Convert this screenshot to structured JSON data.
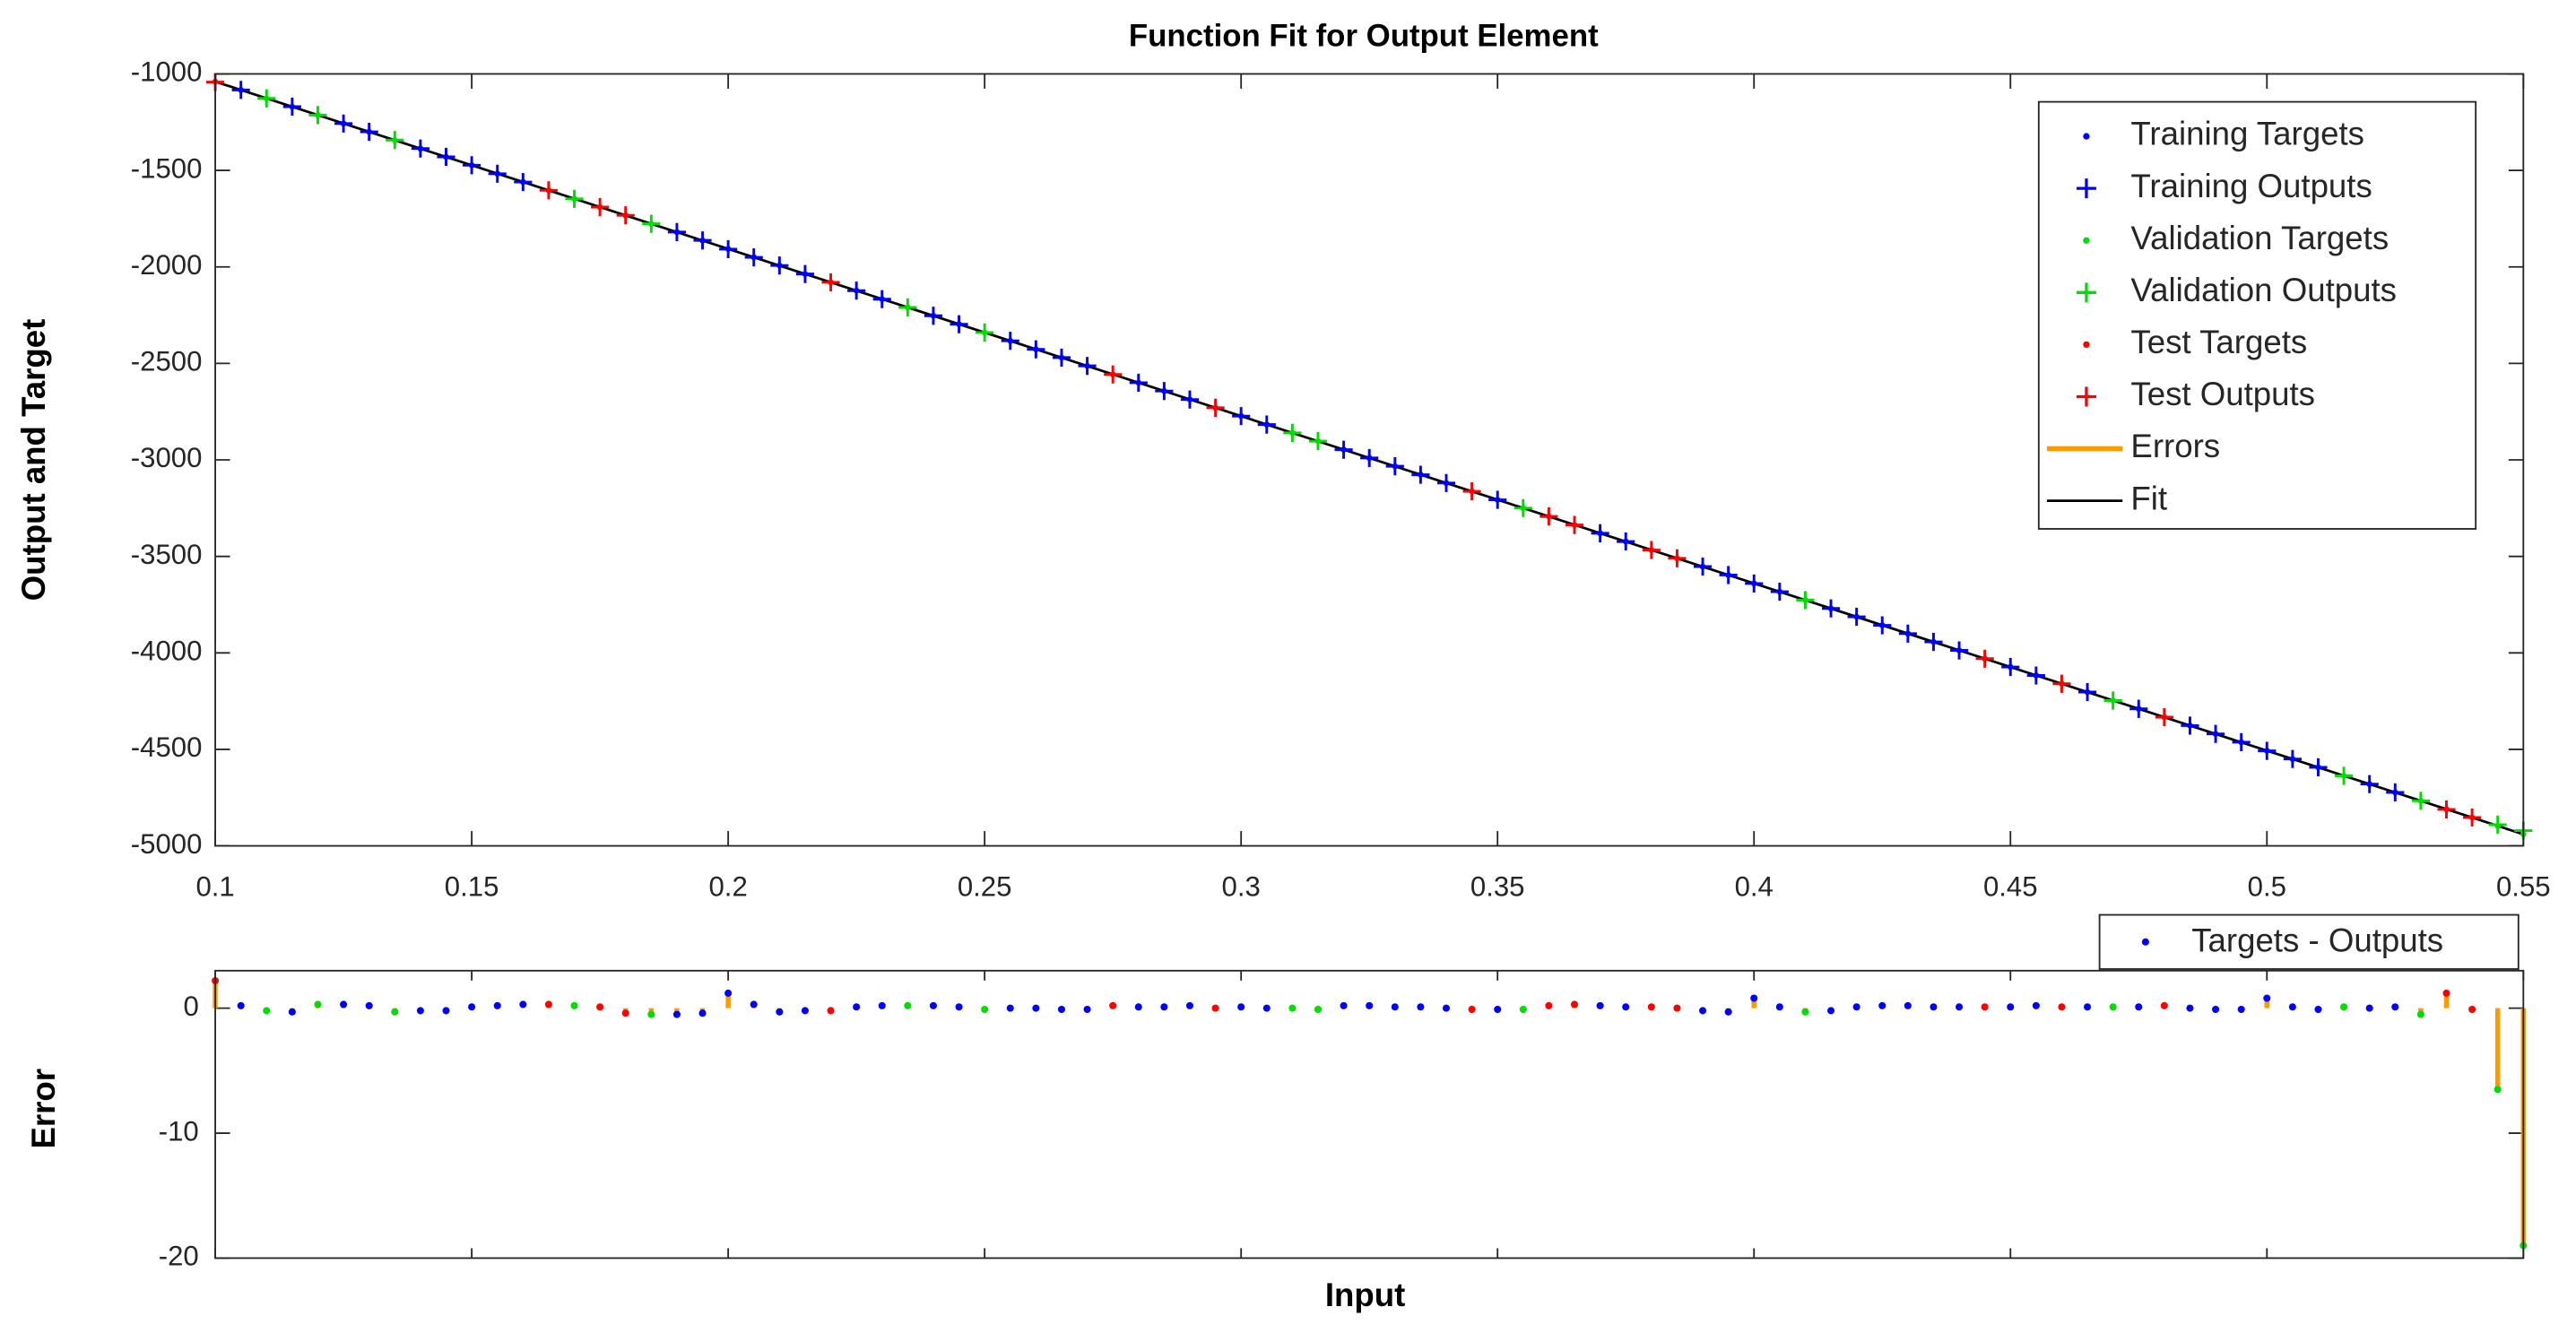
{
  "chart_data": [
    {
      "type": "fit",
      "title": "Function Fit for Output Element",
      "ylabel": "Output and Target",
      "xlim": [
        0.1,
        0.55
      ],
      "ylim": [
        -5000,
        -1000
      ],
      "xticks": [
        0.1,
        0.15,
        0.2,
        0.25,
        0.3,
        0.35,
        0.4,
        0.45,
        0.5,
        0.55
      ],
      "yticks": [
        -5000,
        -4500,
        -4000,
        -3500,
        -3000,
        -2500,
        -2000,
        -1500,
        -1000
      ],
      "legend": "upper right",
      "sets": [
        {
          "color": "#0000ff",
          "targets": {
            "name": "Training Targets",
            "values": [
              -1083,
              -1170,
              -1257,
              -1300,
              -1387,
              -1430,
              -1473,
              -1517,
              -1560,
              -1820,
              -1863,
              -1907,
              -1950,
              -1993,
              -2037,
              -2123,
              -2167,
              -2253,
              -2297,
              -2383,
              -2427,
              -2470,
              -2513,
              -2600,
              -2643,
              -2687,
              -2773,
              -2817,
              -2947,
              -2990,
              -3033,
              -3077,
              -3120,
              -3207,
              -3380,
              -3423,
              -3553,
              -3597,
              -3640,
              -3683,
              -3770,
              -3813,
              -3857,
              -3900,
              -3943,
              -3987,
              -4073,
              -4117,
              -4203,
              -4290,
              -4377,
              -4420,
              -4463,
              -4507,
              -4550,
              -4593,
              -4680,
              -4723
            ]
          },
          "outputs": {
            "name": "Training Outputs",
            "values": [
              -1083.2,
              -1169.7,
              -1257.3,
              -1300.2,
              -1386.8,
              -1429.8,
              -1473.1,
              -1517.2,
              -1560.3,
              -1819.5,
              -1862.6,
              -1908.2,
              -1950.3,
              -1992.7,
              -2036.8,
              -2123.1,
              -2167.2,
              -2253.2,
              -2297.1,
              -2383,
              -2427,
              -2469.9,
              -2512.9,
              -2600.1,
              -2643.1,
              -2687.2,
              -2773.1,
              -2817,
              -2947.2,
              -2990.2,
              -3033.1,
              -3077.1,
              -3120,
              -3206.9,
              -3380.2,
              -3423.1,
              -3552.8,
              -3596.7,
              -3640.8,
              -3683.1,
              -3769.8,
              -3813.1,
              -3857.2,
              -3900.2,
              -3943.1,
              -3987.1,
              -4073.1,
              -4117.2,
              -4203.1,
              -4290.1,
              -4377,
              -4419.9,
              -4462.9,
              -4507.8,
              -4550.1,
              -4592.9,
              -4680,
              -4723.1
            ]
          },
          "x": [
            0.105,
            0.115,
            0.125,
            0.13,
            0.14,
            0.145,
            0.15,
            0.155,
            0.16,
            0.19,
            0.195,
            0.2,
            0.205,
            0.21,
            0.215,
            0.225,
            0.23,
            0.24,
            0.245,
            0.255,
            0.26,
            0.265,
            0.27,
            0.28,
            0.285,
            0.29,
            0.3,
            0.305,
            0.32,
            0.325,
            0.33,
            0.335,
            0.34,
            0.35,
            0.37,
            0.375,
            0.39,
            0.395,
            0.4,
            0.405,
            0.415,
            0.42,
            0.425,
            0.43,
            0.435,
            0.44,
            0.45,
            0.455,
            0.465,
            0.475,
            0.485,
            0.49,
            0.495,
            0.5,
            0.505,
            0.51,
            0.52,
            0.525
          ]
        },
        {
          "color": "#00dd00",
          "targets": {
            "name": "Validation Targets",
            "values": [
              -1127,
              -1213,
              -1343,
              -1647,
              -1777,
              -2210,
              -2340,
              -2860,
              -2903,
              -3250,
              -3727,
              -4247,
              -4637,
              -4767,
              -4897,
              -4940
            ]
          },
          "outputs": {
            "name": "Validation Outputs",
            "values": [
              -1126.8,
              -1213.3,
              -1342.7,
              -1647.2,
              -1776.5,
              -2210.2,
              -2339.9,
              -2860,
              -2902.9,
              -3249.9,
              -3726.7,
              -4247.1,
              -4637.1,
              -4766.5,
              -4890.5,
              -4921
            ]
          },
          "x": [
            0.11,
            0.12,
            0.135,
            0.17,
            0.185,
            0.235,
            0.25,
            0.31,
            0.315,
            0.355,
            0.41,
            0.47,
            0.515,
            0.53,
            0.545,
            0.55
          ]
        },
        {
          "color": "#ff0000",
          "targets": {
            "name": "Test Targets",
            "values": [
              -1040,
              -1603,
              -1690,
              -1733,
              -2080,
              -2557,
              -2730,
              -3163,
              -3293,
              -3337,
              -3467,
              -3510,
              -4030,
              -4160,
              -4333,
              -4810,
              -4853
            ]
          },
          "outputs": {
            "name": "Test Outputs",
            "values": [
              -1042.2,
              -1603.3,
              -1690.1,
              -1732.6,
              -2079.8,
              -2557.2,
              -2730,
              -3162.9,
              -3293.2,
              -3337.3,
              -3467.1,
              -3510,
              -4030.1,
              -4160.1,
              -4333.2,
              -4811.2,
              -4852.9
            ]
          },
          "x": [
            0.1,
            0.165,
            0.175,
            0.18,
            0.22,
            0.275,
            0.295,
            0.345,
            0.36,
            0.365,
            0.38,
            0.385,
            0.445,
            0.46,
            0.48,
            0.535,
            0.54
          ]
        }
      ],
      "errors": {
        "name": "Errors",
        "color": "#ff9900"
      },
      "fit": {
        "name": "Fit",
        "color": "#000000",
        "x": [
          0.1,
          0.55
        ],
        "values": [
          -1040,
          -4940
        ]
      }
    },
    {
      "type": "error",
      "ylabel": "Error",
      "xlabel": "Input",
      "legend": "Targets - Outputs",
      "ylim": [
        -20,
        3
      ],
      "yticks": [
        -20,
        -10,
        0
      ],
      "stem_color": "#ff9900",
      "series": [
        {
          "color": "#0000ff",
          "values": [
            0.2,
            -0.3,
            0.3,
            0.2,
            -0.2,
            -0.2,
            0.1,
            0.2,
            0.3,
            -0.5,
            -0.4,
            1.2,
            0.3,
            -0.3,
            -0.2,
            0.1,
            0.2,
            0.2,
            0.1,
            0,
            0,
            -0.1,
            -0.1,
            0.1,
            0.1,
            0.2,
            0.1,
            0,
            0.2,
            0.2,
            0.1,
            0.1,
            0,
            -0.1,
            0.2,
            0.1,
            -0.2,
            -0.3,
            0.8,
            0.1,
            -0.2,
            0.1,
            0.2,
            0.2,
            0.1,
            0.1,
            0.1,
            0.2,
            0.1,
            0.1,
            0,
            -0.1,
            -0.1,
            0.8,
            0.1,
            -0.1,
            0,
            0.1
          ]
        },
        {
          "color": "#00dd00",
          "values": [
            -0.2,
            0.3,
            -0.3,
            0.2,
            -0.5,
            0.2,
            -0.1,
            0,
            -0.1,
            -0.1,
            -0.3,
            0.1,
            0.1,
            -0.5,
            -6.5,
            -19
          ]
        },
        {
          "color": "#ff0000",
          "values": [
            2.2,
            0.3,
            0.1,
            -0.4,
            -0.2,
            0.2,
            0,
            -0.1,
            0.2,
            0.3,
            0.1,
            0,
            0.1,
            0.1,
            0.2,
            1.2,
            -0.1
          ]
        }
      ]
    }
  ]
}
